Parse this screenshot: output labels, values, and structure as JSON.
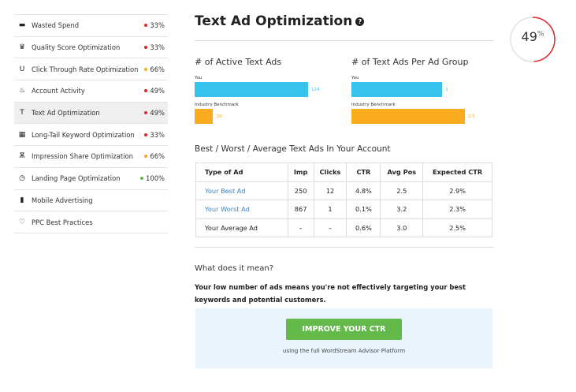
{
  "sidebar": {
    "items": [
      {
        "label": "Wasted Spend",
        "icon": "wallet-icon",
        "glyph": "▬",
        "pct": "33%",
        "status": "#e0262b"
      },
      {
        "label": "Quality Score Optimization",
        "icon": "award-icon",
        "glyph": "♛",
        "pct": "33%",
        "status": "#e0262b"
      },
      {
        "label": "Click Through Rate Optimization",
        "icon": "magnet-icon",
        "glyph": "U",
        "pct": "66%",
        "status": "#f5a623"
      },
      {
        "label": "Account Activity",
        "icon": "fire-icon",
        "glyph": "♨",
        "pct": "49%",
        "status": "#e0262b"
      },
      {
        "label": "Text Ad Optimization",
        "icon": "text-icon",
        "glyph": "T",
        "pct": "49%",
        "status": "#e0262b"
      },
      {
        "label": "Long-Tail Keyword Optimization",
        "icon": "chart-icon",
        "glyph": "▦",
        "pct": "33%",
        "status": "#e0262b"
      },
      {
        "label": "Impression Share Optimization",
        "icon": "binoculars-icon",
        "glyph": "Ѫ",
        "pct": "66%",
        "status": "#f5a623"
      },
      {
        "label": "Landing Page Optimization",
        "icon": "clock-icon",
        "glyph": "◷",
        "pct": "100%",
        "status": "#5cb946"
      },
      {
        "label": "Mobile Advertising",
        "icon": "mobile-icon",
        "glyph": "▮",
        "pct": null,
        "status": null
      },
      {
        "label": "PPC Best Practices",
        "icon": "heart-icon",
        "glyph": "♡",
        "pct": null,
        "status": null
      }
    ],
    "active": 4
  },
  "header": {
    "title": "Text Ad Optimization",
    "help": "?"
  },
  "score": {
    "value": 49,
    "label": "49",
    "unit": "%",
    "color": "#e0262b"
  },
  "charts": [
    {
      "title": "# of Active Text Ads",
      "you_label": "You",
      "you": 124,
      "you_text": "124",
      "bench_label": "Industry Benchmark",
      "bench": 20,
      "bench_text": "20"
    },
    {
      "title": "# of Text Ads Per Ad Group",
      "you_label": "You",
      "you": 2,
      "you_text": "2",
      "bench_label": "Industry Benchmark",
      "bench": 2.5,
      "bench_text": "2.5"
    }
  ],
  "colors": {
    "you": "#35c3ee",
    "bench": "#fbab1e"
  },
  "table": {
    "title": "Best / Worst / Average Text Ads In Your Account",
    "headers": [
      "Type of Ad",
      "Imp",
      "Clicks",
      "CTR",
      "Avg Pos",
      "Expected CTR"
    ],
    "rows": [
      [
        "Your Best Ad",
        "250",
        "12",
        "4.8%",
        "2.5",
        "2.9%"
      ],
      [
        "Your Worst Ad",
        "867",
        "1",
        "0.1%",
        "3.2",
        "2.3%"
      ],
      [
        "Your Average Ad",
        "–",
        "–",
        "0.6%",
        "3.0",
        "2.5%"
      ]
    ]
  },
  "meaning": {
    "heading": "What does it mean?",
    "message": "Your low number of ads means you're not effectively targeting your best keywords and potential customers."
  },
  "cta": {
    "button": "IMPROVE YOUR CTR",
    "sub": "using the full WordStream Advisor Platform"
  }
}
